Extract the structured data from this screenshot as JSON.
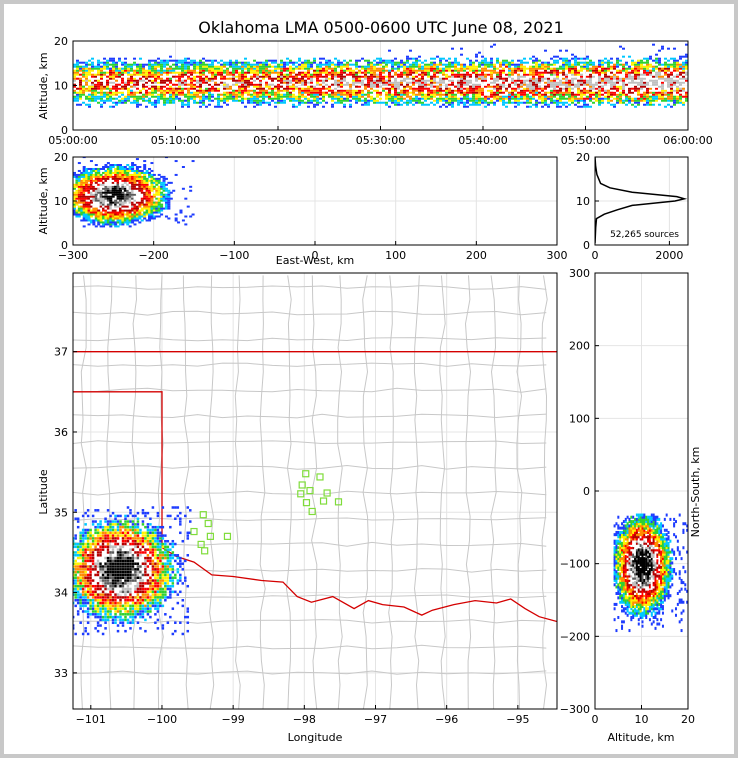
{
  "chart_data": [
    {
      "panel": "altitude-time",
      "type": "heatmap",
      "title": "Oklahoma LMA 0500-0600 UTC June 08, 2021",
      "xlabel": "",
      "ylabel": "Altitude, km",
      "x_ticks": [
        "05:00:00",
        "05:10:00",
        "05:20:00",
        "05:30:00",
        "05:40:00",
        "05:50:00",
        "06:00:00"
      ],
      "xlim_minutes": [
        0,
        60
      ],
      "ylim": [
        0,
        20
      ],
      "y_ticks": [
        "0",
        "10",
        "20"
      ],
      "band_km": [
        5,
        17
      ],
      "core_km": [
        8,
        13
      ]
    },
    {
      "panel": "altitude-eastwest",
      "type": "heatmap",
      "xlabel": "East-West, km",
      "ylabel": "Altitude, km",
      "xlim": [
        -300,
        300
      ],
      "ylim": [
        0,
        20
      ],
      "x_ticks": [
        "−300",
        "−200",
        "−100",
        "0",
        "100",
        "200",
        "300"
      ],
      "y_ticks": [
        "0",
        "10",
        "20"
      ],
      "cloud_center": [
        -250,
        11
      ]
    },
    {
      "panel": "altitude-histogram",
      "type": "line",
      "xlim": [
        0,
        2500
      ],
      "ylim": [
        0,
        20
      ],
      "x_ticks": [
        "0",
        "2000"
      ],
      "y_ticks": [
        "0",
        "10",
        "20"
      ],
      "annotation": "52,265 sources",
      "profile": [
        {
          "alt": 0.4,
          "count": 0
        },
        {
          "alt": 4,
          "count": 20
        },
        {
          "alt": 6,
          "count": 40
        },
        {
          "alt": 7,
          "count": 250
        },
        {
          "alt": 8,
          "count": 600
        },
        {
          "alt": 9,
          "count": 1000
        },
        {
          "alt": 10,
          "count": 2150
        },
        {
          "alt": 10.5,
          "count": 2400
        },
        {
          "alt": 11,
          "count": 2200
        },
        {
          "alt": 12,
          "count": 1000
        },
        {
          "alt": 13,
          "count": 400
        },
        {
          "alt": 14,
          "count": 150
        },
        {
          "alt": 16,
          "count": 50
        },
        {
          "alt": 18,
          "count": 15
        },
        {
          "alt": 20,
          "count": 0
        }
      ]
    },
    {
      "panel": "plan-view-map",
      "type": "scatter",
      "xlabel": "Longitude",
      "ylabel": "Latitude",
      "xlim": [
        -101.25,
        -94.45
      ],
      "ylim": [
        32.55,
        37.98
      ],
      "x_ticks": [
        "−101",
        "−100",
        "−99",
        "−98",
        "−97",
        "−96",
        "−95"
      ],
      "y_ticks": [
        "33",
        "34",
        "35",
        "36",
        "37"
      ],
      "storm_center": [
        -100.6,
        34.3
      ],
      "lma_stations": [
        {
          "lon": -99.42,
          "lat": 34.97
        },
        {
          "lon": -99.35,
          "lat": 34.86
        },
        {
          "lon": -99.55,
          "lat": 34.76
        },
        {
          "lon": -99.32,
          "lat": 34.7
        },
        {
          "lon": -99.45,
          "lat": 34.6
        },
        {
          "lon": -99.4,
          "lat": 34.52
        },
        {
          "lon": -99.08,
          "lat": 34.7
        },
        {
          "lon": -97.98,
          "lat": 35.48
        },
        {
          "lon": -97.78,
          "lat": 35.44
        },
        {
          "lon": -98.03,
          "lat": 35.34
        },
        {
          "lon": -97.92,
          "lat": 35.27
        },
        {
          "lon": -98.05,
          "lat": 35.23
        },
        {
          "lon": -97.68,
          "lat": 35.24
        },
        {
          "lon": -97.97,
          "lat": 35.12
        },
        {
          "lon": -97.73,
          "lat": 35.14
        },
        {
          "lon": -97.52,
          "lat": 35.13
        },
        {
          "lon": -97.89,
          "lat": 35.01
        }
      ]
    },
    {
      "panel": "northsouth-altitude",
      "type": "heatmap",
      "xlabel": "Altitude, km",
      "ylabel": "North-South, km",
      "xlim": [
        0,
        20
      ],
      "ylim": [
        -300,
        300
      ],
      "x_ticks": [
        "0",
        "10",
        "20"
      ],
      "y_ticks": [
        "−300",
        "−200",
        "−100",
        "0",
        "100",
        "200",
        "300"
      ],
      "cloud_center": [
        10,
        -100
      ]
    }
  ]
}
